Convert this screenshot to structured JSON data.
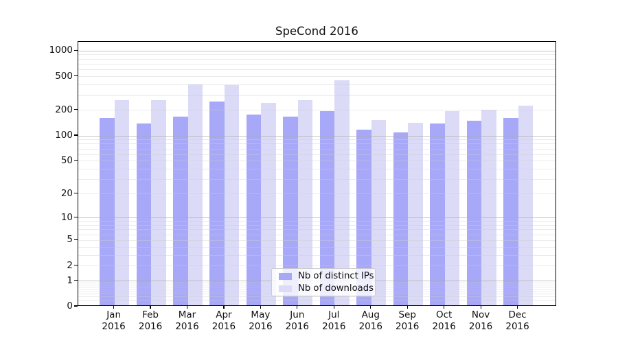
{
  "title": "SpeCond 2016",
  "chart_data": {
    "type": "bar",
    "title": "SpeCond 2016",
    "categories": [
      "Jan",
      "Feb",
      "Mar",
      "Apr",
      "May",
      "Jun",
      "Jul",
      "Aug",
      "Sep",
      "Oct",
      "Nov",
      "Dec"
    ],
    "category_year": "2016",
    "series": [
      {
        "name": "Nb of distinct IPs",
        "color": "#a8a8f8",
        "values": [
          163,
          141,
          170,
          255,
          177,
          168,
          196,
          119,
          110,
          139,
          151,
          162
        ]
      },
      {
        "name": "Nb of downloads",
        "color": "#dbdbf8",
        "values": [
          263,
          263,
          406,
          400,
          244,
          265,
          450,
          153,
          143,
          195,
          204,
          228
        ]
      }
    ],
    "y_axis": {
      "scale": "symlog",
      "tick_values": [
        0,
        1,
        2,
        5,
        10,
        20,
        50,
        100,
        200,
        500,
        1000
      ],
      "tick_labels": [
        "0",
        "1",
        "2",
        "5",
        "10",
        "20",
        "50",
        "100",
        "200",
        "500",
        "1000"
      ],
      "major_gridlines": [
        1,
        10,
        100,
        1000
      ],
      "ylim": [
        0,
        1280
      ]
    },
    "xlabel": "",
    "ylabel": "",
    "grid": true,
    "legend_position": "lower-center"
  }
}
